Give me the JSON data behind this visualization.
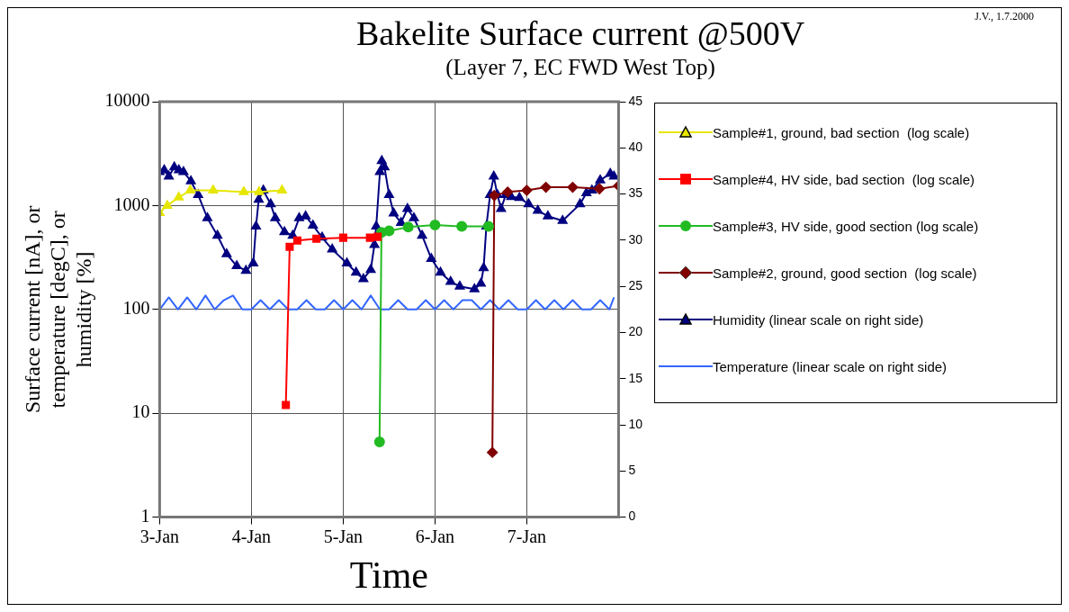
{
  "chart_data": {
    "type": "line",
    "title": "Bakelite Surface current @500V",
    "subtitle": "(Layer 7, EC FWD West Top)",
    "xlabel": "Time",
    "ylabel": "Surface current [nA], or temperature [degC], or humidity [%]",
    "annotations": [
      "J.V., 1.7.2000"
    ],
    "xlim": [
      "--01-03",
      "--01-08"
    ],
    "xticks": [
      {
        "value": "--01-03",
        "label": "3-Jan"
      },
      {
        "value": "--01-04",
        "label": "4-Jan"
      },
      {
        "value": "--01-05",
        "label": "5-Jan"
      },
      {
        "value": "--01-06",
        "label": "6-Jan"
      },
      {
        "value": "--01-07",
        "label": "7-Jan"
      }
    ],
    "ylim": [
      1,
      10000
    ],
    "yticks": [
      1,
      10,
      100,
      1000,
      10000
    ],
    "log": "y",
    "y2lim": [
      0,
      45
    ],
    "y2ticks": [
      0,
      5,
      10,
      15,
      20,
      25,
      30,
      35,
      40,
      45
    ],
    "grid": true,
    "legend": "right",
    "series": [
      {
        "name": "Sample#1, ground, bad section  (log scale)",
        "color": "#e6e600",
        "marker": "triangle",
        "x": [
          "--01-03T00:00",
          "--01-03T02:00",
          "--01-03T05:00",
          "--01-03T08:00",
          "--01-03T14:00",
          "--01-03T22:00",
          "--01-04T02:00",
          "--01-04T08:00"
        ],
        "values": [
          850,
          1000,
          1200,
          1400,
          1400,
          1350,
          1350,
          1400
        ]
      },
      {
        "name": "Sample#4, HV side, bad section  (log scale)",
        "color": "#ff0000",
        "marker": "square",
        "x": [
          "--01-04T09:00",
          "--01-04T10:00",
          "--01-04T12:00",
          "--01-04T17:00",
          "--01-05T00:00",
          "--01-05T07:00",
          "--01-05T09:00"
        ],
        "values": [
          12,
          400,
          460,
          480,
          490,
          490,
          500
        ]
      },
      {
        "name": "Sample#3, HV side, good section (log scale)",
        "color": "#22bb22",
        "marker": "circle",
        "x": [
          "--01-05T09:30",
          "--01-05T10:00",
          "--01-05T12:00",
          "--01-05T17:00",
          "--01-06T00:00",
          "--01-06T07:00",
          "--01-06T14:00"
        ],
        "values": [
          5.3,
          550,
          570,
          620,
          650,
          630,
          630
        ]
      },
      {
        "name": "Sample#2, ground, good section  (log scale)",
        "color": "#800000",
        "marker": "diamond",
        "x": [
          "--01-06T15:00",
          "--01-06T15:30",
          "--01-06T19:00",
          "--01-07T00:00",
          "--01-07T05:00",
          "--01-07T12:00",
          "--01-07T19:00",
          "--01-08T00:00"
        ],
        "values": [
          4.2,
          1250,
          1350,
          1400,
          1500,
          1500,
          1450,
          1550
        ]
      },
      {
        "name": "Humidity (linear scale on right side)",
        "color": "#000080",
        "marker": "triangle",
        "axis": "y2",
        "x": [
          "--01-03T00:00",
          "--01-03T01:12",
          "--01-03T02:24",
          "--01-03T03:50",
          "--01-03T05:02",
          "--01-03T06:14",
          "--01-03T08:10",
          "--01-03T10:05",
          "--01-03T12:29",
          "--01-03T15:07",
          "--01-03T17:31",
          "--01-03T20:10",
          "--01-03T22:34",
          "--01-04T00:29",
          "--01-04T01:12",
          "--01-04T01:55",
          "--01-04T03:07",
          "--01-04T05:02",
          "--01-04T06:14",
          "--01-04T08:38",
          "--01-04T10:48",
          "--01-04T12:29",
          "--01-04T14:10",
          "--01-04T16:05",
          "--01-04T18:29",
          "--01-04T21:07",
          "--01-05T00:58",
          "--01-05T03:22",
          "--01-05T05:17",
          "--01-05T07:12",
          "--01-05T08:10",
          "--01-05T08:38",
          "--01-05T09:36",
          "--01-05T10:05",
          "--01-05T10:48",
          "--01-05T12:00",
          "--01-05T13:12",
          "--01-05T15:07",
          "--01-05T16:48",
          "--01-05T18:29",
          "--01-05T20:38",
          "--01-05T23:02",
          "--01-06T01:26",
          "--01-06T04:05",
          "--01-06T06:29",
          "--01-06T10:19",
          "--01-06T12:00",
          "--01-06T12:43",
          "--01-06T13:26",
          "--01-06T14:24",
          "--01-06T15:22",
          "--01-06T16:19",
          "--01-06T17:17",
          "--01-06T18:29",
          "--01-06T19:55",
          "--01-06T22:05",
          "--01-07T00:29",
          "--01-07T02:53",
          "--01-07T05:31",
          "--01-07T09:22",
          "--01-07T13:55",
          "--01-07T15:36",
          "--01-07T17:02",
          "--01-07T19:12",
          "--01-07T21:50",
          "--01-07T22:48"
        ],
        "values": [
          37.4,
          37.6,
          36.9,
          37.9,
          37.6,
          37.4,
          36.4,
          34.9,
          32.4,
          30.5,
          28.5,
          27.2,
          26.7,
          27.5,
          31.5,
          34.4,
          35.4,
          33.9,
          32.4,
          30.9,
          30.5,
          32.4,
          32.6,
          31.6,
          30.3,
          29.0,
          27.5,
          26.5,
          25.8,
          26.8,
          29.5,
          31.5,
          37.4,
          38.6,
          37.9,
          34.9,
          32.9,
          31.9,
          33.4,
          32.4,
          30.5,
          28.0,
          26.5,
          25.5,
          25.0,
          24.7,
          25.3,
          27.0,
          31.5,
          34.9,
          36.9,
          34.9,
          33.4,
          34.9,
          34.7,
          34.6,
          33.9,
          33.2,
          32.6,
          32.1,
          33.9,
          35.1,
          35.4,
          36.5,
          37.2,
          36.9
        ]
      },
      {
        "name": "Temperature (linear scale on right side)",
        "color": "#3366ff",
        "marker": "none",
        "axis": "y2",
        "x": [
          "--01-03T00:00",
          "--01-03T02:24",
          "--01-03T04:48",
          "--01-03T07:12",
          "--01-03T09:36",
          "--01-03T12:00",
          "--01-03T14:24",
          "--01-03T16:48",
          "--01-03T19:12",
          "--01-03T21:36",
          "--01-04T00:00",
          "--01-04T02:24",
          "--01-04T04:48",
          "--01-04T07:12",
          "--01-04T09:36",
          "--01-04T12:00",
          "--01-04T14:24",
          "--01-04T16:48",
          "--01-04T19:12",
          "--01-04T21:36",
          "--01-05T00:00",
          "--01-05T02:24",
          "--01-05T04:48",
          "--01-05T07:12",
          "--01-05T09:36",
          "--01-05T12:00",
          "--01-05T14:24",
          "--01-05T16:48",
          "--01-05T19:12",
          "--01-05T21:36",
          "--01-06T00:00",
          "--01-06T02:24",
          "--01-06T04:48",
          "--01-06T07:12",
          "--01-06T09:36",
          "--01-06T12:00",
          "--01-06T14:24",
          "--01-06T16:48",
          "--01-06T19:12",
          "--01-06T21:36",
          "--01-07T00:00",
          "--01-07T02:24",
          "--01-07T04:48",
          "--01-07T07:12",
          "--01-07T09:36",
          "--01-07T12:00",
          "--01-07T14:24",
          "--01-07T16:48",
          "--01-07T19:12",
          "--01-07T21:36",
          "--01-07T22:48"
        ],
        "values": [
          22.5,
          23.8,
          22.5,
          23.8,
          22.5,
          24.0,
          22.5,
          23.5,
          24.0,
          22.5,
          22.5,
          23.5,
          22.5,
          23.5,
          22.5,
          22.5,
          23.5,
          22.5,
          22.5,
          23.5,
          22.5,
          23.5,
          22.5,
          24.0,
          22.5,
          22.5,
          23.5,
          22.5,
          22.5,
          23.5,
          22.5,
          23.5,
          22.5,
          23.5,
          23.5,
          22.5,
          23.5,
          22.5,
          23.5,
          22.5,
          22.5,
          23.5,
          22.5,
          23.5,
          22.5,
          23.5,
          22.5,
          22.5,
          23.5,
          22.5,
          23.8
        ]
      }
    ]
  }
}
